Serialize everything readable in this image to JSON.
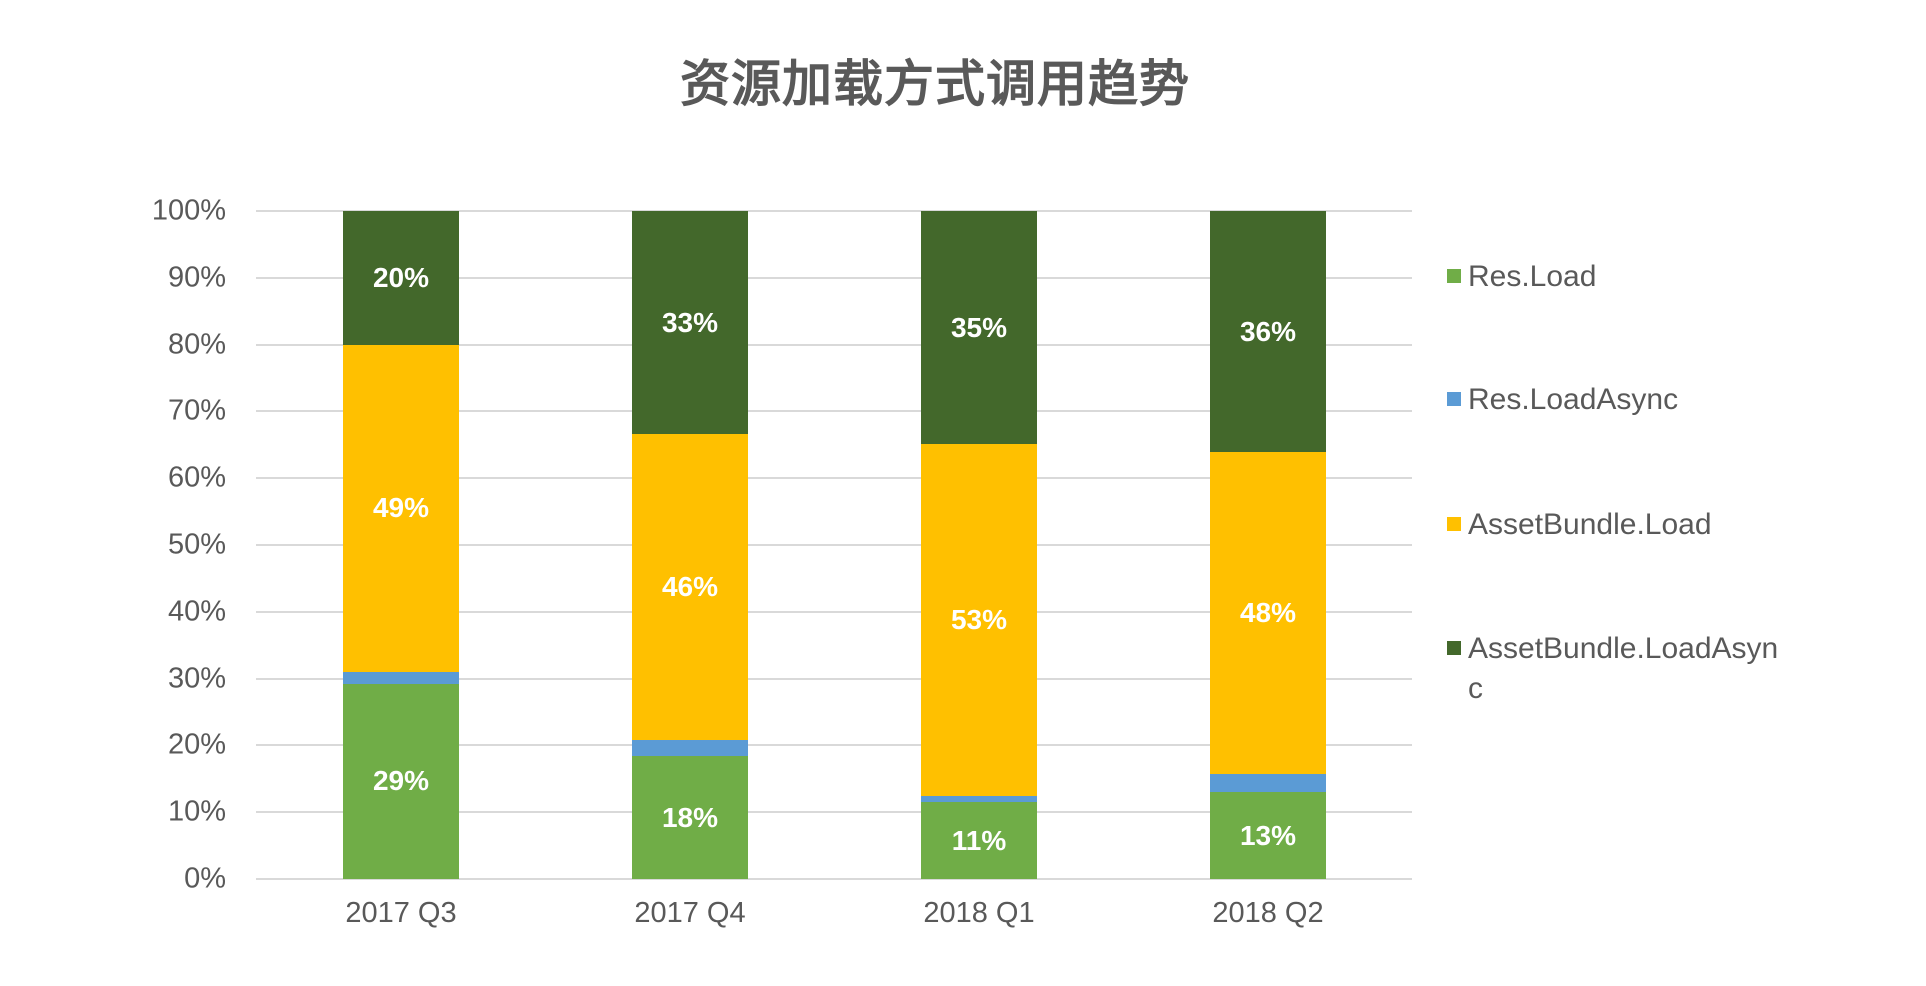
{
  "title": "资源加载方式调用趋势",
  "y_axis": {
    "ticks": [
      "0%",
      "10%",
      "20%",
      "30%",
      "40%",
      "50%",
      "60%",
      "70%",
      "80%",
      "90%",
      "100%"
    ]
  },
  "categories": [
    "2017 Q3",
    "2017 Q4",
    "2018 Q1",
    "2018 Q2"
  ],
  "legend": [
    {
      "label": "Res.Load",
      "color": "#70AD47"
    },
    {
      "label": "Res.LoadAsync",
      "color": "#5B9BD5"
    },
    {
      "label": "AssetBundle.Load",
      "color": "#FFC000"
    },
    {
      "label": "AssetBundle.LoadAsync",
      "color": "#43682B"
    }
  ],
  "bars": [
    {
      "category": "2017 Q3",
      "segments": [
        {
          "series": "Res.Load",
          "value": 29.2,
          "label": "29%"
        },
        {
          "series": "Res.LoadAsync",
          "value": 1.8,
          "label": ""
        },
        {
          "series": "AssetBundle.Load",
          "value": 49.0,
          "label": "49%"
        },
        {
          "series": "AssetBundle.LoadAsync",
          "value": 20.0,
          "label": "20%"
        }
      ]
    },
    {
      "category": "2017 Q4",
      "segments": [
        {
          "series": "Res.Load",
          "value": 18.4,
          "label": "18%"
        },
        {
          "series": "Res.LoadAsync",
          "value": 2.4,
          "label": ""
        },
        {
          "series": "AssetBundle.Load",
          "value": 45.8,
          "label": "46%"
        },
        {
          "series": "AssetBundle.LoadAsync",
          "value": 33.4,
          "label": "33%"
        }
      ]
    },
    {
      "category": "2018 Q1",
      "segments": [
        {
          "series": "Res.Load",
          "value": 11.5,
          "label": "11%"
        },
        {
          "series": "Res.LoadAsync",
          "value": 0.9,
          "label": ""
        },
        {
          "series": "AssetBundle.Load",
          "value": 52.7,
          "label": "53%"
        },
        {
          "series": "AssetBundle.LoadAsync",
          "value": 34.9,
          "label": "35%"
        }
      ]
    },
    {
      "category": "2018 Q2",
      "segments": [
        {
          "series": "Res.Load",
          "value": 13.0,
          "label": "13%"
        },
        {
          "series": "Res.LoadAsync",
          "value": 2.7,
          "label": ""
        },
        {
          "series": "AssetBundle.Load",
          "value": 48.2,
          "label": "48%"
        },
        {
          "series": "AssetBundle.LoadAsync",
          "value": 36.1,
          "label": "36%"
        }
      ]
    }
  ],
  "chart_data": {
    "type": "bar",
    "stacked": "percent",
    "title": "资源加载方式调用趋势",
    "xlabel": "",
    "ylabel": "",
    "ylim": [
      0,
      100
    ],
    "y_tick_labels": [
      "0%",
      "10%",
      "20%",
      "30%",
      "40%",
      "50%",
      "60%",
      "70%",
      "80%",
      "90%",
      "100%"
    ],
    "grid": true,
    "legend_position": "right",
    "categories": [
      "2017 Q3",
      "2017 Q4",
      "2018 Q1",
      "2018 Q2"
    ],
    "series": [
      {
        "name": "Res.Load",
        "color": "#70AD47",
        "values": [
          29.2,
          18.4,
          11.5,
          13.0
        ],
        "data_labels": [
          "29%",
          "18%",
          "11%",
          "13%"
        ]
      },
      {
        "name": "Res.LoadAsync",
        "color": "#5B9BD5",
        "values": [
          1.8,
          2.4,
          0.9,
          2.7
        ],
        "data_labels": []
      },
      {
        "name": "AssetBundle.Load",
        "color": "#FFC000",
        "values": [
          49.0,
          45.8,
          52.7,
          48.2
        ],
        "data_labels": [
          "49%",
          "46%",
          "53%",
          "48%"
        ]
      },
      {
        "name": "AssetBundle.LoadAsync",
        "color": "#43682B",
        "values": [
          20.0,
          33.4,
          34.9,
          36.1
        ],
        "data_labels": [
          "20%",
          "33%",
          "35%",
          "36%"
        ]
      }
    ]
  }
}
